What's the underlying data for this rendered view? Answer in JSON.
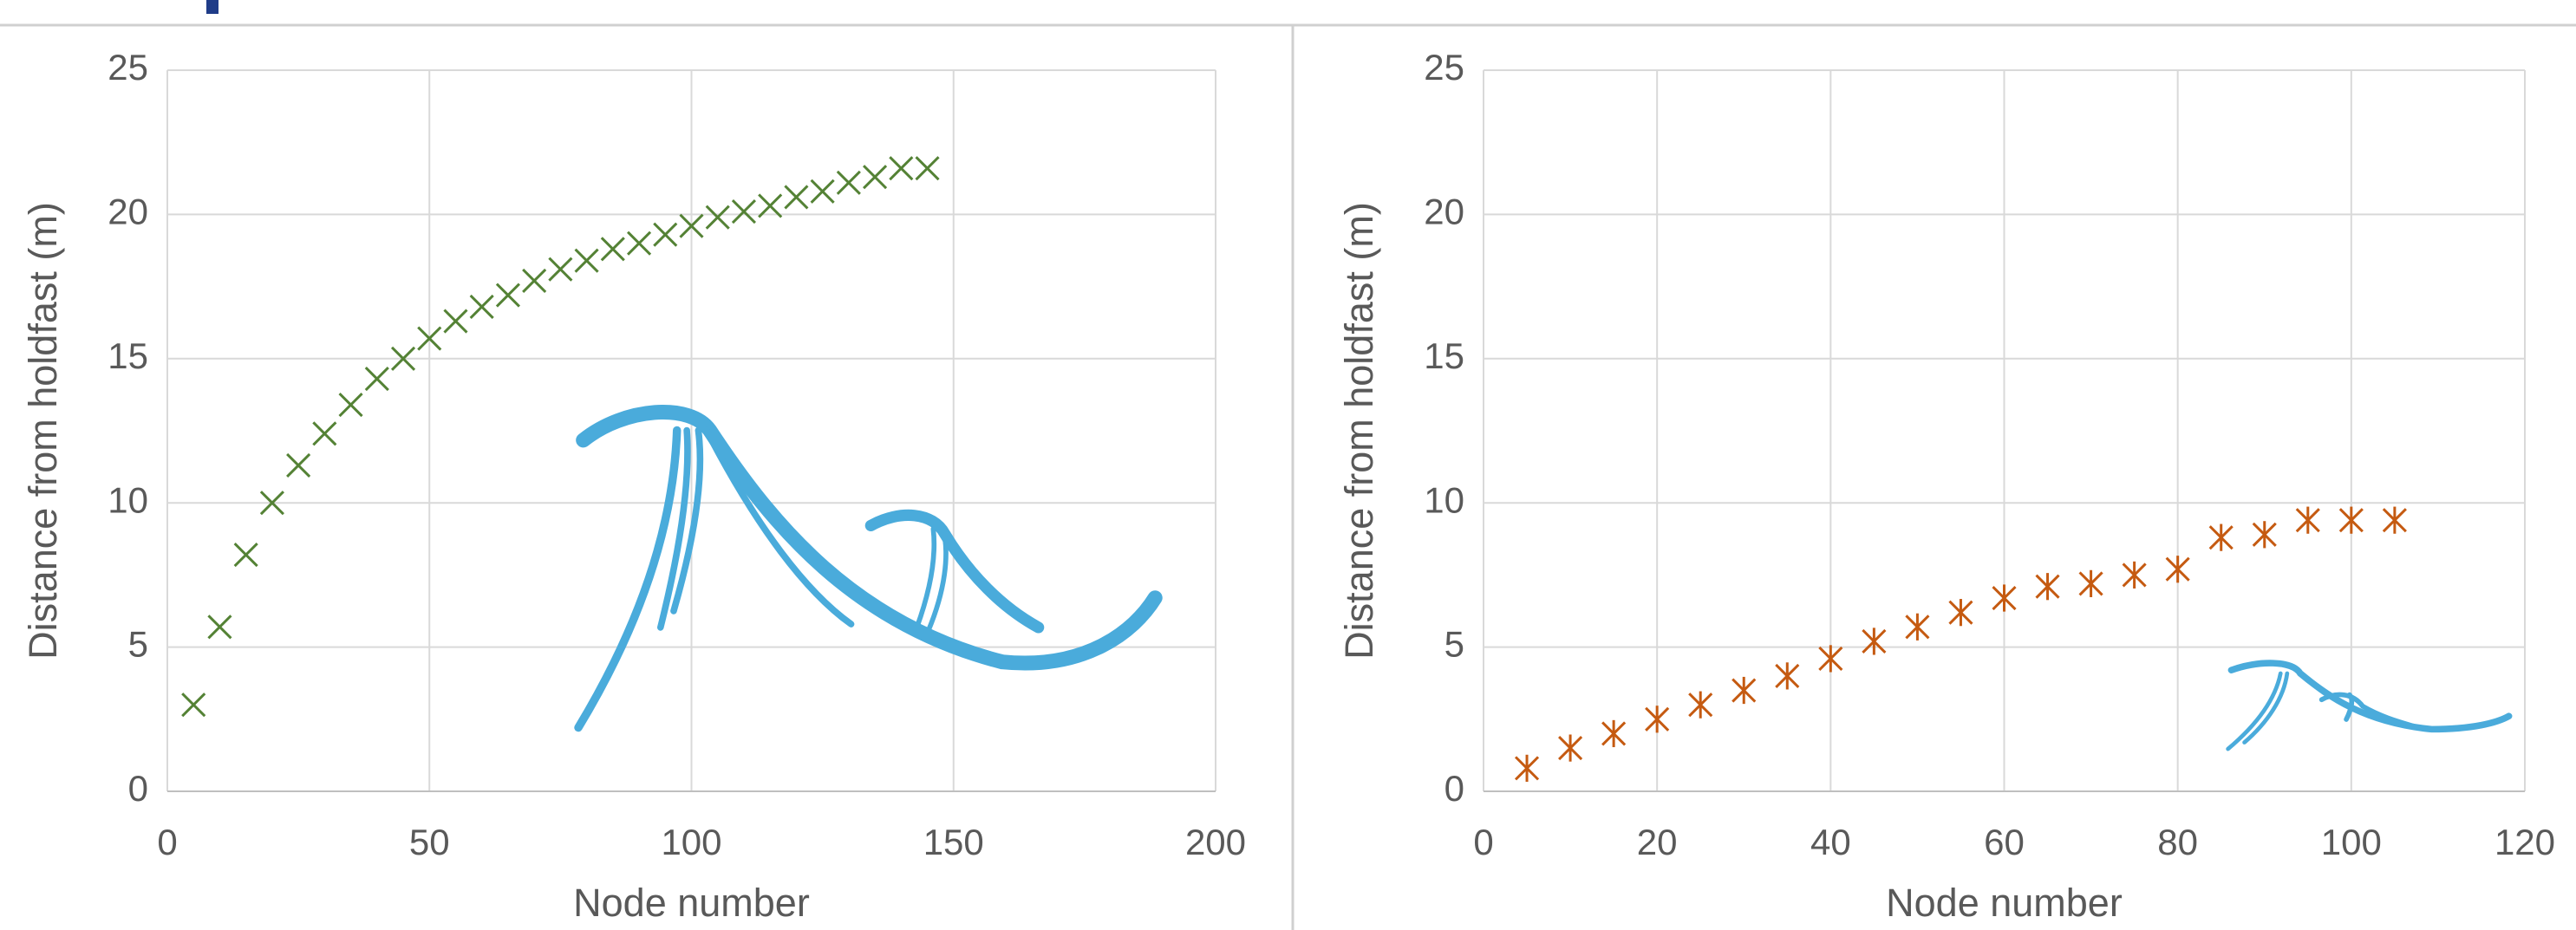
{
  "chart_data": [
    {
      "type": "scatter",
      "x_label": "Node number",
      "y_label": "Distance from holdfast (m)",
      "x": [
        5,
        10,
        15,
        20,
        25,
        30,
        35,
        40,
        45,
        50,
        55,
        60,
        65,
        70,
        75,
        80,
        85,
        90,
        95,
        100,
        105,
        110,
        115,
        120,
        125,
        130,
        135,
        140,
        145
      ],
      "series": [
        {
          "color": "#548235",
          "marker": "x",
          "values": [
            3.0,
            5.7,
            8.2,
            10.0,
            11.3,
            12.4,
            13.4,
            14.3,
            15.0,
            15.7,
            16.3,
            16.8,
            17.2,
            17.7,
            18.1,
            18.4,
            18.8,
            19.0,
            19.3,
            19.6,
            19.9,
            20.1,
            20.3,
            20.6,
            20.8,
            21.1,
            21.3,
            21.6,
            21.6
          ]
        }
      ],
      "xlim": [
        0,
        200
      ],
      "ylim": [
        0,
        25
      ],
      "xticks": [
        0,
        50,
        100,
        150,
        200
      ],
      "yticks": [
        0,
        5,
        10,
        15,
        20,
        25
      ],
      "grid": true
    },
    {
      "type": "scatter",
      "x_label": "Node number",
      "y_label": "Distance from holdfast (m)",
      "x": [
        5,
        10,
        15,
        20,
        25,
        30,
        35,
        40,
        45,
        50,
        55,
        60,
        65,
        70,
        75,
        80,
        85,
        90,
        95,
        100,
        105
      ],
      "series": [
        {
          "color": "#c55a11",
          "marker": "asterisk",
          "values": [
            0.8,
            1.5,
            2.0,
            2.5,
            3.0,
            3.5,
            4.0,
            4.6,
            5.2,
            5.7,
            6.2,
            6.7,
            7.1,
            7.2,
            7.5,
            7.7,
            8.8,
            8.9,
            9.4,
            9.4,
            9.4
          ]
        }
      ],
      "xlim": [
        0,
        120
      ],
      "ylim": [
        0,
        25
      ],
      "xticks": [
        0,
        20,
        40,
        60,
        80,
        100,
        120
      ],
      "yticks": [
        0,
        5,
        10,
        15,
        20,
        25
      ],
      "grid": true
    }
  ]
}
